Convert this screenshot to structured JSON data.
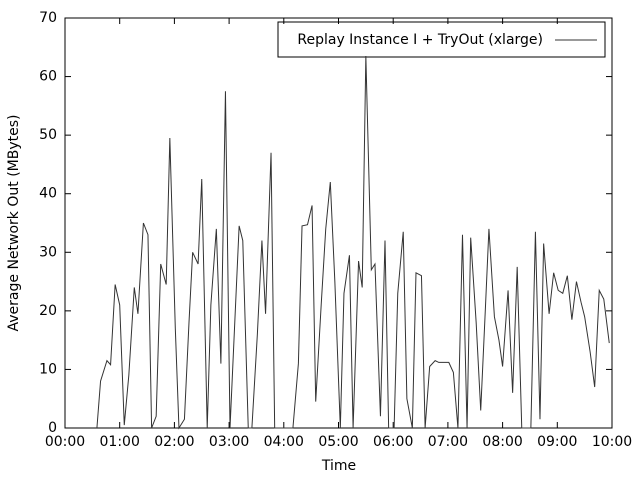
{
  "chart_data": {
    "type": "line",
    "x_label": "Time",
    "y_label": "Average Network Out (MBytes)",
    "xlim": [
      0,
      600
    ],
    "ylim": [
      0,
      70
    ],
    "xticks": [
      {
        "value": 0,
        "label": "00:00"
      },
      {
        "value": 60,
        "label": "01:00"
      },
      {
        "value": 120,
        "label": "02:00"
      },
      {
        "value": 180,
        "label": "03:00"
      },
      {
        "value": 240,
        "label": "04:00"
      },
      {
        "value": 300,
        "label": "05:00"
      },
      {
        "value": 360,
        "label": "06:00"
      },
      {
        "value": 420,
        "label": "07:00"
      },
      {
        "value": 480,
        "label": "08:00"
      },
      {
        "value": 540,
        "label": "09:00"
      },
      {
        "value": 600,
        "label": "10:00"
      }
    ],
    "yticks": [
      0,
      10,
      20,
      30,
      40,
      50,
      60,
      70
    ],
    "legend_position": "upper right",
    "x": [
      35,
      39,
      46,
      50,
      55,
      60,
      65,
      70,
      76,
      80,
      86,
      91,
      95,
      100,
      105,
      111,
      115,
      121,
      125,
      131,
      136,
      140,
      146,
      150,
      156,
      160,
      166,
      171,
      176,
      181,
      191,
      195,
      201,
      205,
      211,
      216,
      220,
      226,
      230,
      236,
      240,
      246,
      250,
      256,
      260,
      266,
      271,
      275,
      281,
      286,
      291,
      296,
      302,
      306,
      312,
      316,
      322,
      326,
      330,
      336,
      340,
      346,
      351,
      355,
      361,
      365,
      371,
      375,
      381,
      385,
      391,
      395,
      400,
      406,
      410,
      416,
      421,
      426,
      431,
      436,
      441,
      445,
      451,
      456,
      461,
      465,
      471,
      476,
      480,
      486,
      491,
      496,
      501,
      506,
      511,
      516,
      521,
      525,
      531,
      536,
      541,
      546,
      551,
      556,
      561,
      566,
      570,
      576,
      581,
      586,
      591,
      597
    ],
    "series": [
      {
        "name": "Replay Instance I + TryOut (xlarge)",
        "color": "#333333",
        "values": [
          0,
          8,
          11.5,
          10.8,
          24.5,
          21,
          0.5,
          9,
          24,
          19.5,
          35,
          33,
          0,
          2,
          28,
          24.5,
          49.5,
          17,
          0,
          1.5,
          18,
          30,
          28,
          42.5,
          0,
          21,
          34,
          11,
          57.5,
          0,
          34.5,
          32,
          0,
          0,
          16,
          32,
          19.5,
          47,
          0,
          0,
          0,
          0,
          0,
          11,
          34.5,
          34.7,
          38,
          4.5,
          21,
          34,
          42,
          25,
          0,
          23,
          29.5,
          0,
          28.5,
          24,
          63.5,
          27,
          28,
          2,
          32,
          0,
          0,
          23,
          33.5,
          5,
          0,
          26.5,
          26,
          0,
          10.5,
          11.5,
          11.2,
          11.2,
          11.2,
          9.5,
          0,
          33,
          0,
          32.5,
          18,
          3,
          20,
          34,
          19,
          15,
          10.5,
          23.5,
          6,
          27.5,
          0,
          0,
          0,
          33.5,
          1.5,
          31.5,
          19.5,
          26.5,
          23.5,
          23,
          26,
          18.5,
          25,
          21.5,
          19,
          13,
          7,
          23.5,
          22,
          14.5
        ]
      }
    ]
  }
}
